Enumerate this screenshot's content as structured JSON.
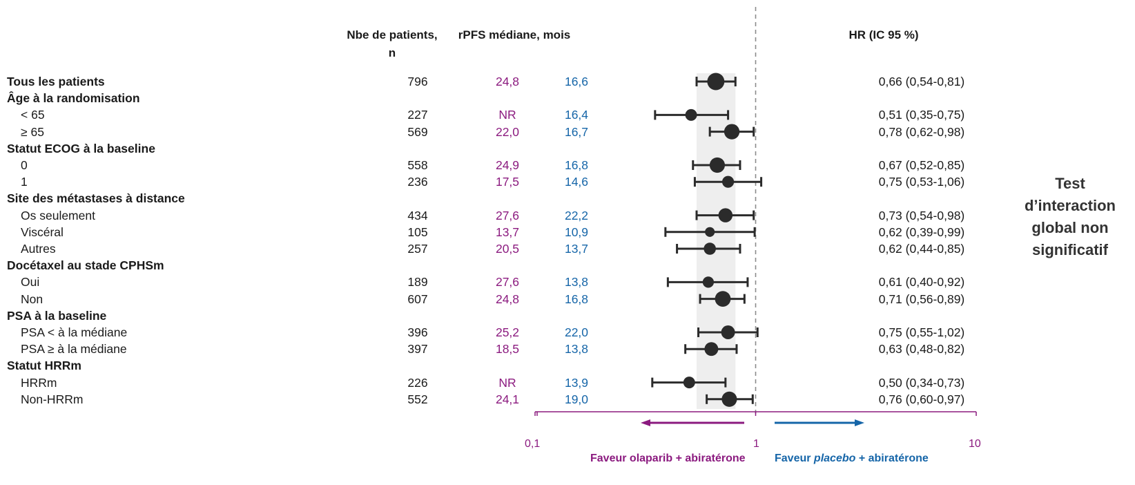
{
  "headers": {
    "patients": "Nbe de patients,",
    "patients_unit": "n",
    "rpfs": "rPFS médiane, mois",
    "hr": "HR (IC 95 %)"
  },
  "rows": [
    {
      "label": "Tous les patients",
      "type": "overall",
      "n": "796",
      "ola": "24,8",
      "pla": "16,6",
      "hr": "0,66 (0,54-0,81)"
    },
    {
      "label": "Âge à la randomisation",
      "type": "group"
    },
    {
      "label": "< 65",
      "type": "sub",
      "n": "227",
      "ola": "NR",
      "pla": "16,4",
      "hr": "0,51 (0,35-0,75)"
    },
    {
      "label": "≥ 65",
      "type": "sub",
      "n": "569",
      "ola": "22,0",
      "pla": "16,7",
      "hr": "0,78 (0,62-0,98)"
    },
    {
      "label": "Statut ECOG à la baseline",
      "type": "group"
    },
    {
      "label": "0",
      "type": "sub",
      "n": "558",
      "ola": "24,9",
      "pla": "16,8",
      "hr": "0,67 (0,52-0,85)"
    },
    {
      "label": "1",
      "type": "sub",
      "n": "236",
      "ola": "17,5",
      "pla": "14,6",
      "hr": "0,75 (0,53-1,06)"
    },
    {
      "label": "Site des métastases à distance",
      "type": "group"
    },
    {
      "label": "Os seulement",
      "type": "sub",
      "n": "434",
      "ola": "27,6",
      "pla": "22,2",
      "hr": "0,73 (0,54-0,98)"
    },
    {
      "label": "Viscéral",
      "type": "sub",
      "n": "105",
      "ola": "13,7",
      "pla": "10,9",
      "hr": "0,62 (0,39-0,99)"
    },
    {
      "label": "Autres",
      "type": "sub",
      "n": "257",
      "ola": "20,5",
      "pla": "13,7",
      "hr": "0,62 (0,44-0,85)"
    },
    {
      "label": "Docétaxel au stade CPHSm",
      "type": "group"
    },
    {
      "label": "Oui",
      "type": "sub",
      "n": "189",
      "ola": "27,6",
      "pla": "13,8",
      "hr": "0,61 (0,40-0,92)"
    },
    {
      "label": "Non",
      "type": "sub",
      "n": "607",
      "ola": "24,8",
      "pla": "16,8",
      "hr": "0,71 (0,56-0,89)"
    },
    {
      "label": "PSA à la baseline",
      "type": "group"
    },
    {
      "label": "PSA < à la médiane",
      "type": "sub",
      "n": "396",
      "ola": "25,2",
      "pla": "22,0",
      "hr": "0,75 (0,55-1,02)"
    },
    {
      "label": "PSA ≥ à la médiane",
      "type": "sub",
      "n": "397",
      "ola": "18,5",
      "pla": "13,8",
      "hr": "0,63 (0,48-0,82)"
    },
    {
      "label": "Statut HRRm",
      "type": "group"
    },
    {
      "label": "HRRm",
      "type": "sub",
      "n": "226",
      "ola": "NR",
      "pla": "13,9",
      "hr": "0,50 (0,34-0,73)"
    },
    {
      "label": "Non-HRRm",
      "type": "sub",
      "n": "552",
      "ola": "24,1",
      "pla": "19,0",
      "hr": "0,76 (0,60-0,97)"
    }
  ],
  "annotation": [
    "Test",
    "d’interaction",
    "global non",
    "significatif"
  ],
  "favour": {
    "left": "Faveur olaparib + abiratérone",
    "right_pre": "Faveur ",
    "right_italic": "placebo",
    "right_post": " + abiratérone"
  },
  "colors": {
    "olaparib": "#8b1a7f",
    "placebo": "#1565a8",
    "marker": "#2b2b2b",
    "ci_band": "#eeeeee"
  },
  "chart_data": {
    "type": "scatter",
    "x_scale": "log",
    "xlim": [
      0.1,
      10
    ],
    "x_ticks": [
      "0,1",
      "1",
      "10"
    ],
    "reference_line": 1,
    "overall_ci_band": [
      0.54,
      0.81
    ],
    "series": [
      {
        "values": [
          {
            "label": "Tous les patients",
            "hr": 0.66,
            "lo": 0.54,
            "hi": 0.81
          },
          {
            "label": "< 65",
            "hr": 0.51,
            "lo": 0.35,
            "hi": 0.75
          },
          {
            "label": "≥ 65",
            "hr": 0.78,
            "lo": 0.62,
            "hi": 0.98
          },
          {
            "label": "0",
            "hr": 0.67,
            "lo": 0.52,
            "hi": 0.85
          },
          {
            "label": "1",
            "hr": 0.75,
            "lo": 0.53,
            "hi": 1.06
          },
          {
            "label": "Os seulement",
            "hr": 0.73,
            "lo": 0.54,
            "hi": 0.98
          },
          {
            "label": "Viscéral",
            "hr": 0.62,
            "lo": 0.39,
            "hi": 0.99
          },
          {
            "label": "Autres",
            "hr": 0.62,
            "lo": 0.44,
            "hi": 0.85
          },
          {
            "label": "Oui",
            "hr": 0.61,
            "lo": 0.4,
            "hi": 0.92
          },
          {
            "label": "Non",
            "hr": 0.71,
            "lo": 0.56,
            "hi": 0.89
          },
          {
            "label": "PSA < à la médiane",
            "hr": 0.75,
            "lo": 0.55,
            "hi": 1.02
          },
          {
            "label": "PSA ≥ à la médiane",
            "hr": 0.63,
            "lo": 0.48,
            "hi": 0.82
          },
          {
            "label": "HRRm",
            "hr": 0.5,
            "lo": 0.34,
            "hi": 0.73
          },
          {
            "label": "Non-HRRm",
            "hr": 0.76,
            "lo": 0.6,
            "hi": 0.97
          }
        ]
      }
    ],
    "marker_size_by_n": {
      "Tous les patients": 796,
      "< 65": 227,
      "≥ 65": 569,
      "0": 558,
      "1": 236,
      "Os seulement": 434,
      "Viscéral": 105,
      "Autres": 257,
      "Oui": 189,
      "Non": 607,
      "PSA < à la médiane": 396,
      "PSA ≥ à la médiane": 397,
      "HRRm": 226,
      "Non-HRRm": 552
    }
  }
}
